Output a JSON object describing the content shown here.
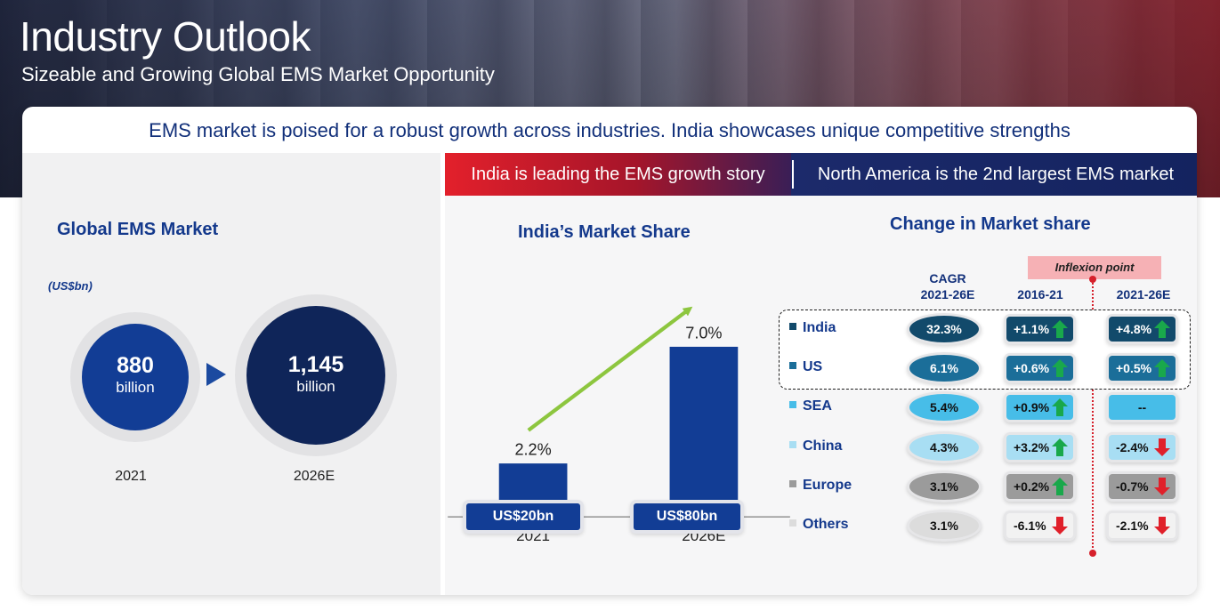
{
  "header": {
    "title": "Industry Outlook",
    "subtitle": "Sizeable and Growing Global EMS Market Opportunity"
  },
  "headline": "EMS market is poised for a robust growth across industries. India showcases unique competitive strengths",
  "banner": {
    "left": "India is leading the EMS growth story",
    "right": "North America is the 2nd largest EMS market"
  },
  "global_market": {
    "title": "Global EMS Market",
    "unit": "(US$bn)",
    "items": [
      {
        "value": "880",
        "unit": "billion",
        "year": "2021"
      },
      {
        "value": "1,145",
        "unit": "billion",
        "year": "2026E"
      }
    ]
  },
  "india_share": {
    "title": "India’s Market Share",
    "labels": [
      "US$20bn",
      "US$80bn"
    ]
  },
  "market_change": {
    "title": "Change in Market share",
    "inflexion_label": "Inflexion point",
    "col_cagr": "CAGR\n2021-26E",
    "col_cagr_l1": "CAGR",
    "col_cagr_l2": "2021-26E",
    "col_2016": "2016-21",
    "col_2021": "2021-26E",
    "rows": [
      {
        "region": "India",
        "cagr": "32.3%",
        "chg1": "+1.1%",
        "dir1": "up",
        "chg2": "+4.8%",
        "dir2": "up"
      },
      {
        "region": "US",
        "cagr": "6.1%",
        "chg1": "+0.6%",
        "dir1": "up",
        "chg2": "+0.5%",
        "dir2": "up"
      },
      {
        "region": "SEA",
        "cagr": "5.4%",
        "chg1": "+0.9%",
        "dir1": "up",
        "chg2": "--",
        "dir2": "none"
      },
      {
        "region": "China",
        "cagr": "4.3%",
        "chg1": "+3.2%",
        "dir1": "up",
        "chg2": "-2.4%",
        "dir2": "down"
      },
      {
        "region": "Europe",
        "cagr": "3.1%",
        "chg1": "+0.2%",
        "dir1": "up",
        "chg2": "-0.7%",
        "dir2": "down"
      },
      {
        "region": "Others",
        "cagr": "3.1%",
        "chg1": "-6.1%",
        "dir1": "down",
        "chg2": "-2.1%",
        "dir2": "down"
      }
    ],
    "row_colors": [
      "#124a6b",
      "#1b6e99",
      "#47bde8",
      "#a8def3",
      "#9b9b9b",
      "#dcdcdc"
    ]
  },
  "chart_data": {
    "type": "bar",
    "title": "India’s Market Share",
    "categories": [
      "2021",
      "2026E"
    ],
    "values": [
      2.2,
      7.0
    ],
    "value_labels": [
      "2.2%",
      "7.0%"
    ],
    "ylim": [
      0,
      8
    ],
    "xlabel": "",
    "ylabel": "",
    "bar_color": "#123d95",
    "trend_arrow_color": "#8dc63f"
  }
}
